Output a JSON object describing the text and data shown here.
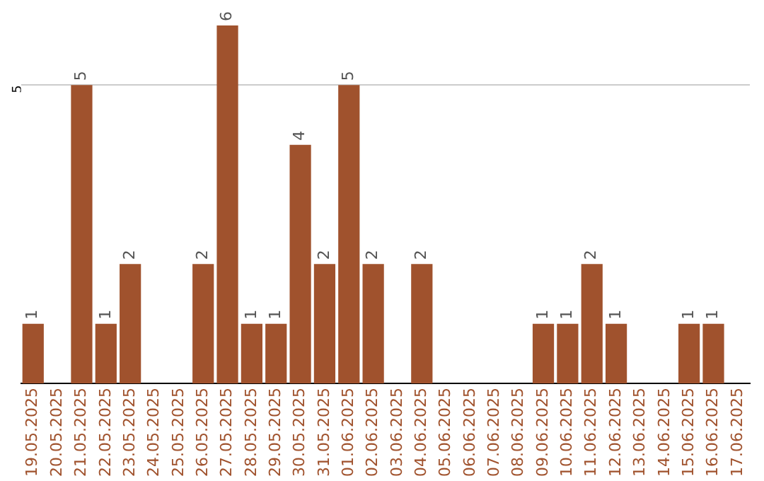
{
  "chart_data": {
    "type": "bar",
    "categories": [
      "19.05.2025",
      "20.05.2025",
      "21.05.2025",
      "22.05.2025",
      "23.05.2025",
      "24.05.2025",
      "25.05.2025",
      "26.05.2025",
      "27.05.2025",
      "28.05.2025",
      "29.05.2025",
      "30.05.2025",
      "31.05.2025",
      "01.06.2025",
      "02.06.2025",
      "03.06.2025",
      "04.06.2025",
      "05.06.2025",
      "06.06.2025",
      "07.06.2025",
      "08.06.2025",
      "09.06.2025",
      "10.06.2025",
      "11.06.2025",
      "12.06.2025",
      "13.06.2025",
      "14.06.2025",
      "15.06.2025",
      "16.06.2025",
      "17.06.2025"
    ],
    "values": [
      1,
      0,
      5,
      1,
      2,
      0,
      0,
      2,
      6,
      1,
      1,
      4,
      2,
      5,
      2,
      0,
      2,
      0,
      0,
      0,
      0,
      1,
      1,
      2,
      1,
      0,
      0,
      1,
      1,
      0
    ],
    "value_labels": [
      "1",
      null,
      "5",
      "1",
      "2",
      null,
      null,
      "2",
      "6",
      "1",
      "1",
      "4",
      "2",
      "5",
      "2",
      null,
      "2",
      null,
      null,
      null,
      null,
      "1",
      "1",
      "2",
      "1",
      null,
      null,
      "1",
      "1",
      null
    ],
    "color": "#a0522d",
    "ylim": [
      0,
      6
    ],
    "yticks": [
      5
    ],
    "grid": "y"
  }
}
